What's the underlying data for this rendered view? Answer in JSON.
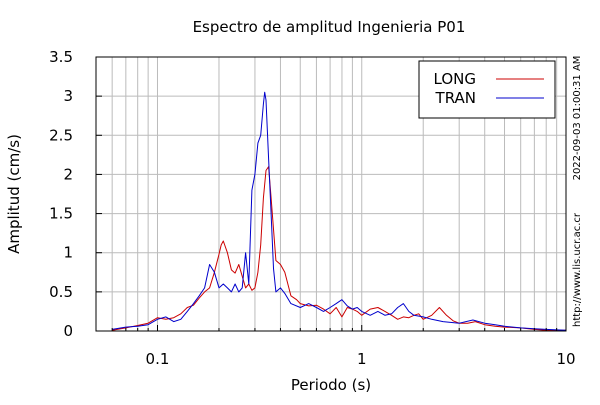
{
  "chart_data": {
    "type": "line",
    "title": "Espectro de amplitud Ingenieria P01",
    "xlabel": "Periodo (s)",
    "ylabel": "Amplitud (cm/s)",
    "x_scale": "log",
    "xlim": [
      0.05,
      10
    ],
    "ylim": [
      0,
      3.5
    ],
    "x_ticks": [
      {
        "value": 0.1,
        "label": "0.1"
      },
      {
        "value": 1,
        "label": "1"
      },
      {
        "value": 10,
        "label": "10"
      }
    ],
    "y_ticks": [
      {
        "value": 0,
        "label": "0"
      },
      {
        "value": 0.5,
        "label": "0.5"
      },
      {
        "value": 1,
        "label": "1"
      },
      {
        "value": 1.5,
        "label": "1.5"
      },
      {
        "value": 2,
        "label": "2"
      },
      {
        "value": 2.5,
        "label": "2.5"
      },
      {
        "value": 3,
        "label": "3"
      },
      {
        "value": 3.5,
        "label": "3.5"
      }
    ],
    "grid": true,
    "legend_position": "top-right",
    "series": [
      {
        "name": "LONG",
        "color": "#cc0000",
        "x": [
          0.06,
          0.07,
          0.08,
          0.09,
          0.1,
          0.11,
          0.12,
          0.13,
          0.14,
          0.15,
          0.16,
          0.17,
          0.18,
          0.19,
          0.2,
          0.205,
          0.21,
          0.22,
          0.23,
          0.24,
          0.25,
          0.26,
          0.27,
          0.28,
          0.29,
          0.3,
          0.31,
          0.32,
          0.33,
          0.34,
          0.35,
          0.36,
          0.37,
          0.38,
          0.4,
          0.42,
          0.45,
          0.48,
          0.5,
          0.55,
          0.6,
          0.65,
          0.7,
          0.75,
          0.8,
          0.85,
          0.9,
          0.95,
          1.0,
          1.1,
          1.2,
          1.3,
          1.4,
          1.5,
          1.6,
          1.7,
          1.8,
          1.9,
          2.0,
          2.2,
          2.4,
          2.6,
          2.8,
          3.0,
          3.3,
          3.6,
          4.0,
          4.5,
          5.0,
          6.0,
          7.0,
          8.0,
          10.0
        ],
        "y": [
          0.01,
          0.04,
          0.07,
          0.1,
          0.17,
          0.15,
          0.17,
          0.22,
          0.3,
          0.33,
          0.42,
          0.5,
          0.55,
          0.75,
          0.98,
          1.1,
          1.15,
          1.0,
          0.78,
          0.74,
          0.85,
          0.7,
          0.55,
          0.6,
          0.52,
          0.55,
          0.75,
          1.1,
          1.7,
          2.05,
          2.1,
          1.7,
          1.3,
          0.9,
          0.85,
          0.75,
          0.45,
          0.4,
          0.35,
          0.32,
          0.33,
          0.28,
          0.22,
          0.3,
          0.18,
          0.3,
          0.28,
          0.25,
          0.2,
          0.28,
          0.3,
          0.25,
          0.2,
          0.15,
          0.18,
          0.17,
          0.2,
          0.22,
          0.15,
          0.2,
          0.3,
          0.2,
          0.13,
          0.1,
          0.1,
          0.12,
          0.08,
          0.06,
          0.05,
          0.04,
          0.02,
          0.01,
          0.01
        ]
      },
      {
        "name": "TRAN",
        "color": "#0000cc",
        "x": [
          0.06,
          0.07,
          0.08,
          0.09,
          0.1,
          0.11,
          0.12,
          0.13,
          0.14,
          0.15,
          0.16,
          0.17,
          0.18,
          0.19,
          0.2,
          0.21,
          0.22,
          0.23,
          0.24,
          0.25,
          0.26,
          0.27,
          0.28,
          0.29,
          0.3,
          0.31,
          0.32,
          0.33,
          0.335,
          0.34,
          0.35,
          0.36,
          0.37,
          0.38,
          0.4,
          0.42,
          0.45,
          0.5,
          0.55,
          0.6,
          0.65,
          0.7,
          0.75,
          0.8,
          0.85,
          0.9,
          0.95,
          1.0,
          1.1,
          1.2,
          1.3,
          1.4,
          1.5,
          1.6,
          1.7,
          1.8,
          2.0,
          2.2,
          2.5,
          3.0,
          3.5,
          4.0,
          4.5,
          5.0,
          6.0,
          7.0,
          8.0,
          10.0
        ],
        "y": [
          0.02,
          0.05,
          0.06,
          0.08,
          0.15,
          0.18,
          0.12,
          0.15,
          0.25,
          0.35,
          0.45,
          0.55,
          0.85,
          0.75,
          0.55,
          0.6,
          0.55,
          0.5,
          0.6,
          0.5,
          0.55,
          1.0,
          0.6,
          1.8,
          2.0,
          2.4,
          2.5,
          2.9,
          3.05,
          2.95,
          2.2,
          1.5,
          0.8,
          0.5,
          0.55,
          0.48,
          0.35,
          0.3,
          0.35,
          0.3,
          0.25,
          0.3,
          0.35,
          0.4,
          0.32,
          0.28,
          0.3,
          0.25,
          0.2,
          0.25,
          0.2,
          0.22,
          0.3,
          0.35,
          0.25,
          0.2,
          0.18,
          0.15,
          0.12,
          0.1,
          0.14,
          0.1,
          0.08,
          0.06,
          0.04,
          0.03,
          0.02,
          0.01
        ]
      }
    ]
  },
  "side_text_date": "2022-09-03 01:00:31 AM",
  "side_text_url": "http://www.lis.ucr.ac.cr"
}
